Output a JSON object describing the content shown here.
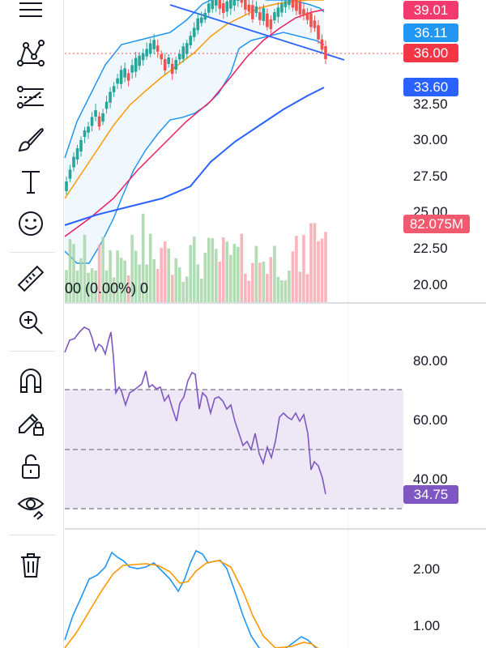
{
  "toolbar": {
    "tools": [
      {
        "name": "trend-lines-icon"
      },
      {
        "name": "patterns-icon"
      },
      {
        "name": "fib-tools-icon"
      },
      {
        "name": "brush-icon"
      },
      {
        "name": "text-tool-icon"
      },
      {
        "name": "emoji-icon"
      },
      {
        "name": "ruler-icon"
      },
      {
        "name": "zoom-in-icon"
      },
      {
        "name": "magnet-icon"
      },
      {
        "name": "lock-drawings-icon"
      },
      {
        "name": "unlock-icon"
      },
      {
        "name": "hide-drawings-icon"
      },
      {
        "name": "trash-icon"
      }
    ]
  },
  "price_pane": {
    "tags": {
      "upper_band": "39.01",
      "middle": "36.11",
      "last_price": "36.00",
      "ma_long": "33.60"
    },
    "axis_labels": [
      "32.50",
      "30.00",
      "27.50",
      "25.00",
      "22.50",
      "20.00"
    ],
    "volume_tag": "82.075M",
    "volume_overlay": "00 (0.00%) 0",
    "colors": {
      "up": "#26a69a",
      "down": "#ef5350",
      "ma_long": "#2962ff",
      "band": "#2196f3",
      "ma_mid": "#ff9800",
      "ma_fast": "#e91e63"
    }
  },
  "rsi_pane": {
    "axis_labels": [
      "80.00",
      "60.00",
      "40.00"
    ],
    "value_tag": "34.75",
    "colors": {
      "line": "#7e57c2",
      "band": "#ede7f6"
    }
  },
  "macd_pane": {
    "axis_labels": [
      "2.00",
      "1.00"
    ],
    "colors": {
      "macd": "#2196f3",
      "signal": "#ff9800"
    }
  }
}
